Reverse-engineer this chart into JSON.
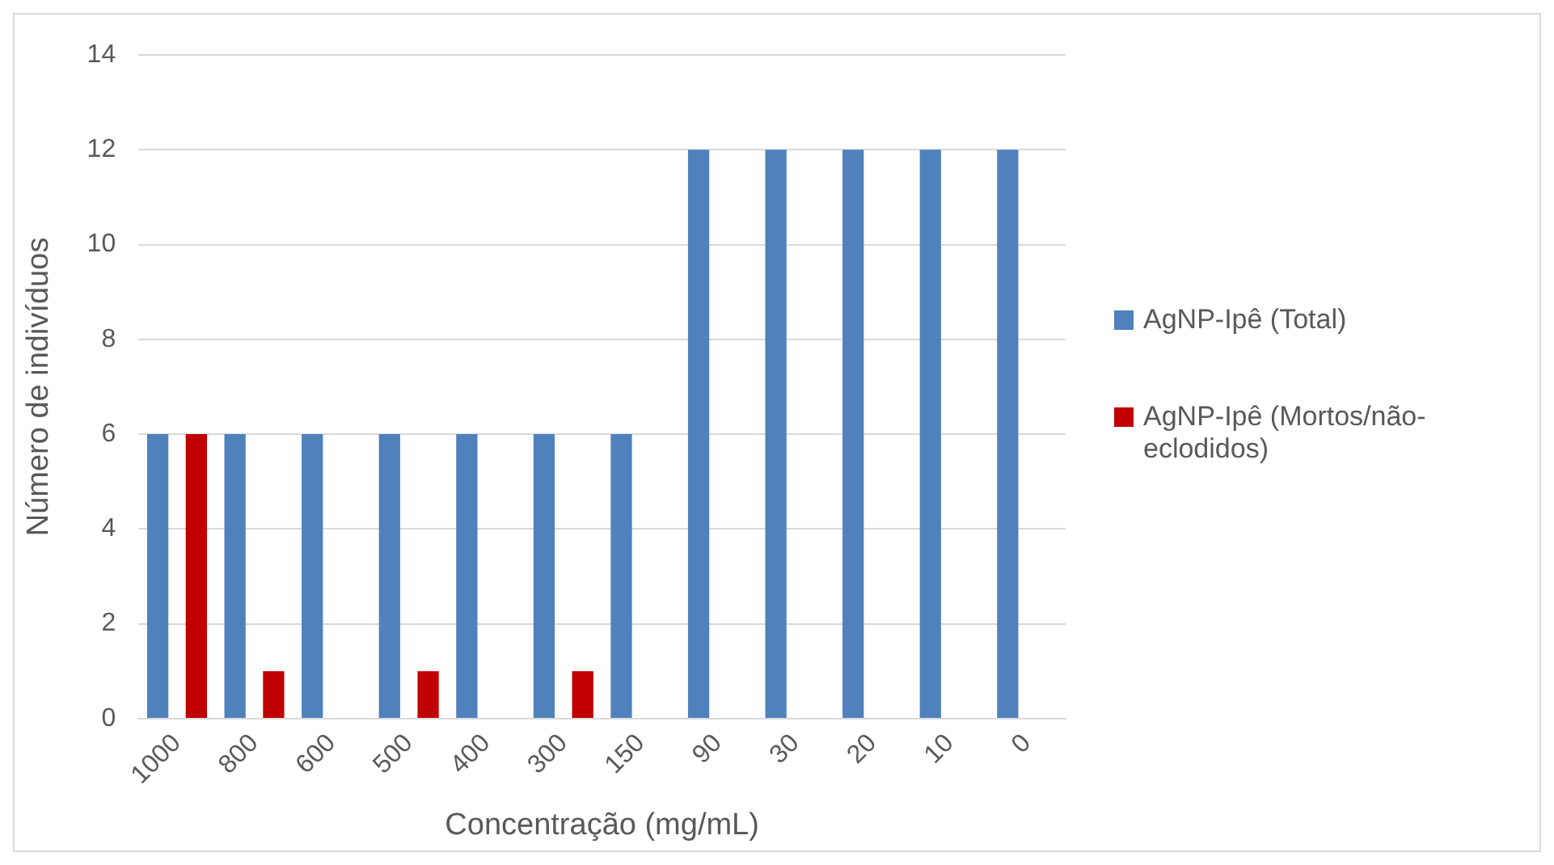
{
  "chart_data": {
    "type": "bar",
    "xlabel": "Concentração (mg/mL)",
    "ylabel": "Número de indivíduos",
    "categories": [
      "1000",
      "800",
      "600",
      "500",
      "400",
      "300",
      "150",
      "90",
      "30",
      "20",
      "10",
      "0"
    ],
    "series": [
      {
        "name": "AgNP-Ipê (Total)",
        "color": "#4f81bd",
        "values": [
          6,
          6,
          6,
          6,
          6,
          6,
          6,
          12,
          12,
          12,
          12,
          12
        ]
      },
      {
        "name": "AgNP-Ipê (Mortos/não-eclodidos)",
        "color": "#c00000",
        "values": [
          6,
          1,
          0,
          1,
          0,
          1,
          0,
          0,
          0,
          0,
          0,
          0
        ]
      }
    ],
    "ylim": [
      0,
      14
    ],
    "yticks": [
      0,
      2,
      4,
      6,
      8,
      10,
      12,
      14
    ],
    "grid": "y",
    "legend": "right"
  }
}
